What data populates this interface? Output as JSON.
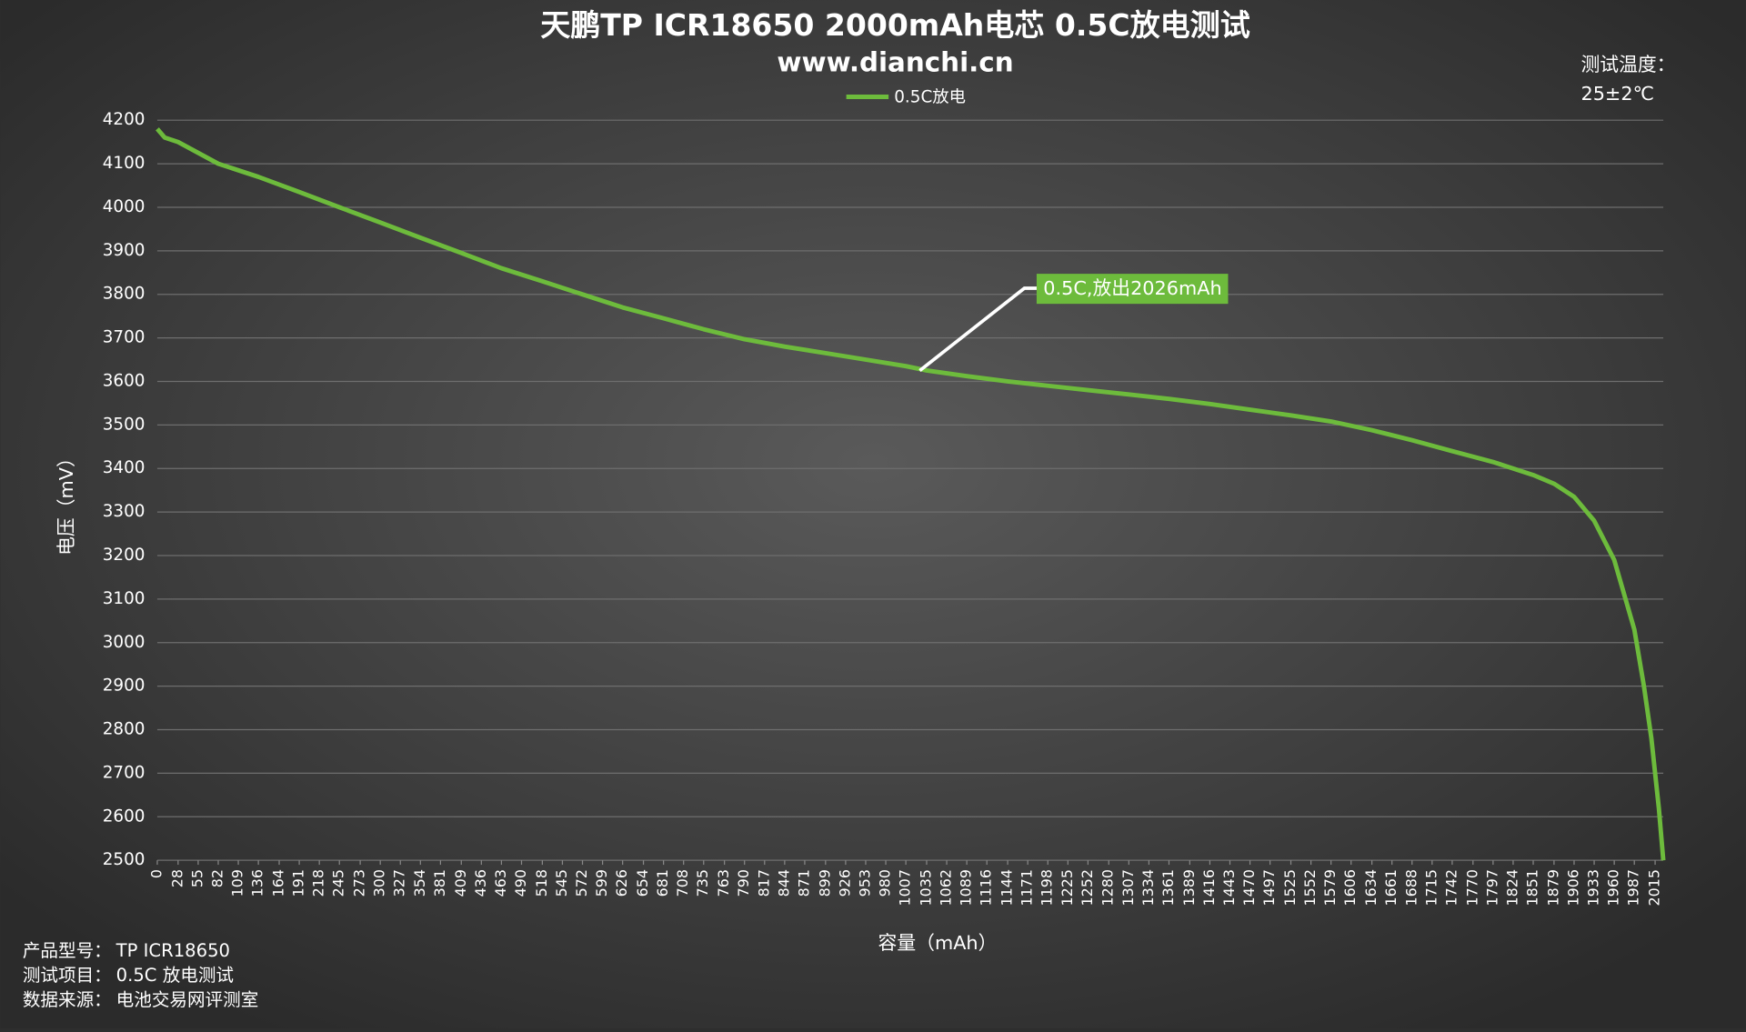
{
  "chart_data": {
    "type": "line",
    "title": "天鹏TP ICR18650 2000mAh电芯 0.5C放电测试",
    "subtitle": "www.dianchi.cn",
    "x_label": "容量（mAh）",
    "y_label": "电压（mV）",
    "x": [
      0,
      10,
      28,
      82,
      136,
      191,
      245,
      300,
      354,
      409,
      463,
      518,
      572,
      626,
      681,
      735,
      790,
      844,
      899,
      953,
      1007,
      1035,
      1089,
      1144,
      1198,
      1252,
      1307,
      1361,
      1416,
      1470,
      1525,
      1579,
      1634,
      1688,
      1742,
      1797,
      1851,
      1879,
      1906,
      1933,
      1960,
      1987,
      2000,
      2010,
      2020,
      2026
    ],
    "series": [
      {
        "name": "0.5C放电",
        "color": "#6dbb3c",
        "values": [
          4180,
          4160,
          4150,
          4100,
          4070,
          4035,
          4000,
          3965,
          3930,
          3895,
          3860,
          3830,
          3800,
          3770,
          3745,
          3720,
          3697,
          3680,
          3665,
          3650,
          3635,
          3625,
          3612,
          3600,
          3590,
          3580,
          3570,
          3560,
          3548,
          3535,
          3522,
          3508,
          3488,
          3465,
          3440,
          3415,
          3385,
          3365,
          3335,
          3280,
          3190,
          3030,
          2900,
          2780,
          2620,
          2500
        ]
      }
    ],
    "xlim": [
      0,
      2026
    ],
    "xticks": [
      0,
      28,
      55,
      82,
      109,
      136,
      164,
      191,
      218,
      245,
      273,
      300,
      327,
      354,
      381,
      409,
      436,
      463,
      490,
      518,
      545,
      572,
      599,
      626,
      654,
      681,
      708,
      735,
      763,
      790,
      817,
      844,
      871,
      899,
      926,
      953,
      980,
      1007,
      1035,
      1062,
      1089,
      1116,
      1144,
      1171,
      1198,
      1225,
      1252,
      1280,
      1307,
      1334,
      1361,
      1389,
      1416,
      1443,
      1470,
      1497,
      1525,
      1552,
      1579,
      1606,
      1634,
      1661,
      1688,
      1715,
      1742,
      1770,
      1797,
      1824,
      1851,
      1879,
      1906,
      1933,
      1960,
      1987,
      2015
    ],
    "ylim": [
      2500,
      4200
    ],
    "yticks": [
      2500,
      2600,
      2700,
      2800,
      2900,
      3000,
      3100,
      3200,
      3300,
      3400,
      3500,
      3600,
      3700,
      3800,
      3900,
      4000,
      4100,
      4200
    ],
    "grid": true,
    "annotation": "0.5C,放出2026mAh",
    "temperature_label": "测试温度：",
    "temperature": "25±2℃"
  },
  "info": [
    {
      "label": "产品型号：",
      "value": "TP ICR18650"
    },
    {
      "label": "测试项目：",
      "value": "0.5C 放电测试"
    },
    {
      "label": "数据来源：",
      "value": "电池交易网评测室"
    }
  ]
}
